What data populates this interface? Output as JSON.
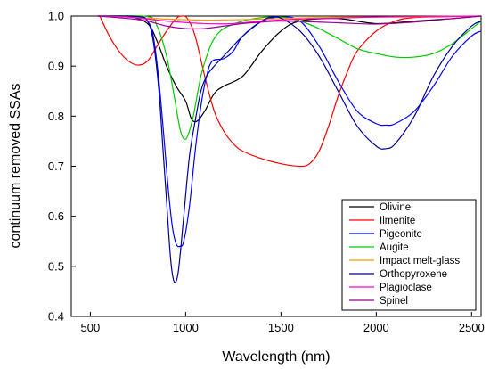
{
  "chart_data": {
    "type": "line",
    "title": "",
    "xlabel": "Wavelength (nm)",
    "ylabel": "continuum removed SSAs",
    "xlim": [
      400,
      2550
    ],
    "ylim": [
      0.4,
      1.0
    ],
    "xticks": [
      500,
      1000,
      1500,
      2000,
      2500
    ],
    "yticks": [
      0.4,
      0.5,
      0.6,
      0.7,
      0.8,
      0.9,
      1.0
    ],
    "xtick_labels": [
      "500",
      "1000",
      "1500",
      "2000",
      "2500"
    ],
    "ytick_labels": [
      "0.4",
      "0.5",
      "0.6",
      "0.7",
      "0.8",
      "0.9",
      "1.0"
    ],
    "grid": false,
    "legend_position": "bottom-right",
    "series": [
      {
        "name": "Olivine",
        "color": "#000000",
        "points": [
          [
            540,
            1.0
          ],
          [
            700,
            0.999
          ],
          [
            800,
            0.985
          ],
          [
            850,
            0.95
          ],
          [
            900,
            0.9
          ],
          [
            950,
            0.86
          ],
          [
            1000,
            0.83
          ],
          [
            1030,
            0.795
          ],
          [
            1060,
            0.79
          ],
          [
            1100,
            0.81
          ],
          [
            1150,
            0.845
          ],
          [
            1200,
            0.86
          ],
          [
            1300,
            0.88
          ],
          [
            1400,
            0.93
          ],
          [
            1500,
            0.97
          ],
          [
            1600,
            0.99
          ],
          [
            1800,
            0.995
          ],
          [
            2000,
            0.985
          ],
          [
            2200,
            0.99
          ],
          [
            2400,
            0.995
          ],
          [
            2550,
            1.0
          ]
        ]
      },
      {
        "name": "Ilmenite",
        "color": "#ff0000",
        "points": [
          [
            550,
            1.0
          ],
          [
            600,
            0.96
          ],
          [
            650,
            0.93
          ],
          [
            700,
            0.91
          ],
          [
            750,
            0.902
          ],
          [
            800,
            0.91
          ],
          [
            850,
            0.94
          ],
          [
            900,
            0.97
          ],
          [
            950,
            0.995
          ],
          [
            980,
            1.0
          ],
          [
            1010,
            0.995
          ],
          [
            1050,
            0.96
          ],
          [
            1100,
            0.88
          ],
          [
            1150,
            0.81
          ],
          [
            1200,
            0.77
          ],
          [
            1250,
            0.745
          ],
          [
            1300,
            0.73
          ],
          [
            1400,
            0.715
          ],
          [
            1500,
            0.705
          ],
          [
            1600,
            0.7
          ],
          [
            1650,
            0.705
          ],
          [
            1700,
            0.73
          ],
          [
            1750,
            0.78
          ],
          [
            1800,
            0.84
          ],
          [
            1850,
            0.89
          ],
          [
            1900,
            0.93
          ],
          [
            2000,
            0.97
          ],
          [
            2100,
            0.99
          ],
          [
            2200,
            0.997
          ],
          [
            2400,
            0.999
          ],
          [
            2550,
            1.0
          ]
        ]
      },
      {
        "name": "Pigeonite",
        "color": "#0000ff",
        "points": [
          [
            540,
            1.0
          ],
          [
            750,
            0.999
          ],
          [
            800,
            0.99
          ],
          [
            830,
            0.96
          ],
          [
            860,
            0.87
          ],
          [
            890,
            0.74
          ],
          [
            910,
            0.65
          ],
          [
            930,
            0.58
          ],
          [
            950,
            0.545
          ],
          [
            970,
            0.54
          ],
          [
            990,
            0.55
          ],
          [
            1020,
            0.62
          ],
          [
            1050,
            0.73
          ],
          [
            1080,
            0.82
          ],
          [
            1110,
            0.88
          ],
          [
            1140,
            0.91
          ],
          [
            1200,
            0.915
          ],
          [
            1250,
            0.93
          ],
          [
            1300,
            0.96
          ],
          [
            1400,
            0.99
          ],
          [
            1500,
            0.998
          ],
          [
            1600,
            0.99
          ],
          [
            1700,
            0.94
          ],
          [
            1800,
            0.87
          ],
          [
            1900,
            0.81
          ],
          [
            2000,
            0.785
          ],
          [
            2050,
            0.782
          ],
          [
            2100,
            0.785
          ],
          [
            2200,
            0.81
          ],
          [
            2300,
            0.86
          ],
          [
            2400,
            0.92
          ],
          [
            2500,
            0.96
          ],
          [
            2550,
            0.97
          ]
        ]
      },
      {
        "name": "Augite",
        "color": "#00cc00",
        "points": [
          [
            540,
            1.0
          ],
          [
            800,
            0.999
          ],
          [
            850,
            0.98
          ],
          [
            900,
            0.92
          ],
          [
            940,
            0.84
          ],
          [
            970,
            0.775
          ],
          [
            990,
            0.755
          ],
          [
            1010,
            0.76
          ],
          [
            1040,
            0.8
          ],
          [
            1080,
            0.88
          ],
          [
            1120,
            0.93
          ],
          [
            1150,
            0.955
          ],
          [
            1200,
            0.975
          ],
          [
            1300,
            0.99
          ],
          [
            1400,
            0.997
          ],
          [
            1500,
            0.998
          ],
          [
            1600,
            0.99
          ],
          [
            1700,
            0.975
          ],
          [
            1800,
            0.955
          ],
          [
            1900,
            0.935
          ],
          [
            2000,
            0.925
          ],
          [
            2100,
            0.918
          ],
          [
            2200,
            0.918
          ],
          [
            2300,
            0.925
          ],
          [
            2400,
            0.945
          ],
          [
            2500,
            0.975
          ],
          [
            2550,
            0.99
          ]
        ]
      },
      {
        "name": "Impact melt-glass",
        "color": "#ff9900",
        "points": [
          [
            540,
            1.0
          ],
          [
            700,
            0.998
          ],
          [
            900,
            0.994
          ],
          [
            1100,
            0.992
          ],
          [
            1300,
            0.993
          ],
          [
            1500,
            0.995
          ],
          [
            1700,
            0.997
          ],
          [
            1900,
            0.998
          ],
          [
            2100,
            0.998
          ],
          [
            2300,
            0.999
          ],
          [
            2550,
            1.0
          ]
        ]
      },
      {
        "name": "Orthopyroxene",
        "color": "#000099",
        "points": [
          [
            540,
            1.0
          ],
          [
            750,
            0.999
          ],
          [
            800,
            0.99
          ],
          [
            830,
            0.95
          ],
          [
            860,
            0.85
          ],
          [
            880,
            0.74
          ],
          [
            900,
            0.63
          ],
          [
            920,
            0.52
          ],
          [
            935,
            0.475
          ],
          [
            950,
            0.47
          ],
          [
            965,
            0.5
          ],
          [
            990,
            0.6
          ],
          [
            1020,
            0.72
          ],
          [
            1050,
            0.79
          ],
          [
            1080,
            0.85
          ],
          [
            1110,
            0.88
          ],
          [
            1150,
            0.9
          ],
          [
            1200,
            0.92
          ],
          [
            1300,
            0.96
          ],
          [
            1400,
            0.99
          ],
          [
            1450,
            0.998
          ],
          [
            1500,
            0.996
          ],
          [
            1600,
            0.97
          ],
          [
            1700,
            0.92
          ],
          [
            1800,
            0.85
          ],
          [
            1900,
            0.78
          ],
          [
            2000,
            0.74
          ],
          [
            2050,
            0.735
          ],
          [
            2100,
            0.745
          ],
          [
            2200,
            0.8
          ],
          [
            2300,
            0.88
          ],
          [
            2400,
            0.94
          ],
          [
            2500,
            0.98
          ],
          [
            2550,
            0.99
          ]
        ]
      },
      {
        "name": "Plagioclase",
        "color": "#ff00cc",
        "points": [
          [
            540,
            1.0
          ],
          [
            700,
            0.998
          ],
          [
            900,
            0.99
          ],
          [
            1100,
            0.985
          ],
          [
            1250,
            0.985
          ],
          [
            1400,
            0.99
          ],
          [
            1600,
            0.994
          ],
          [
            1800,
            0.996
          ],
          [
            2000,
            0.998
          ],
          [
            2200,
            0.999
          ],
          [
            2550,
            1.0
          ]
        ]
      },
      {
        "name": "Spinel",
        "color": "#990099",
        "points": [
          [
            540,
            1.0
          ],
          [
            700,
            0.995
          ],
          [
            800,
            0.99
          ],
          [
            900,
            0.98
          ],
          [
            1000,
            0.975
          ],
          [
            1100,
            0.975
          ],
          [
            1200,
            0.98
          ],
          [
            1300,
            0.985
          ],
          [
            1400,
            0.988
          ],
          [
            1500,
            0.99
          ],
          [
            1700,
            0.988
          ],
          [
            1900,
            0.985
          ],
          [
            2000,
            0.984
          ],
          [
            2200,
            0.988
          ],
          [
            2400,
            0.995
          ],
          [
            2550,
            1.0
          ]
        ]
      }
    ]
  }
}
